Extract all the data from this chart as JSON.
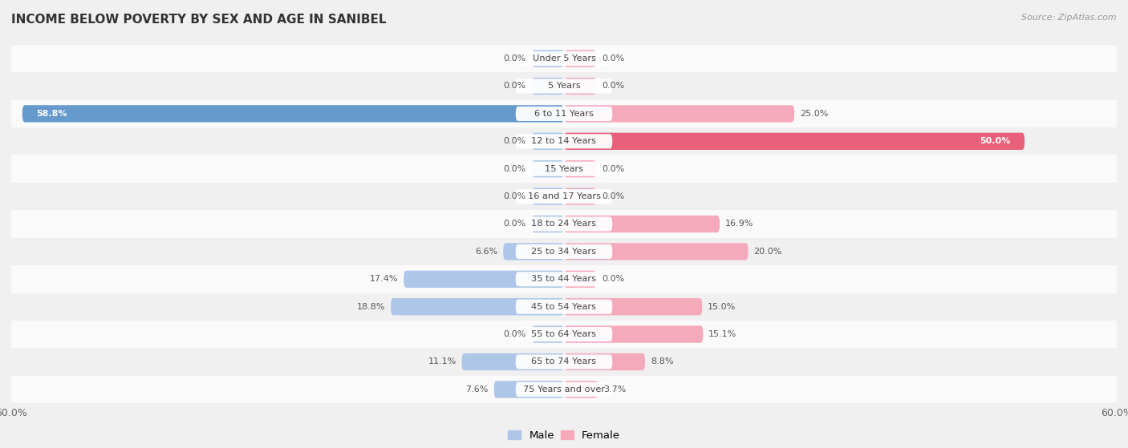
{
  "title": "INCOME BELOW POVERTY BY SEX AND AGE IN SANIBEL",
  "source": "Source: ZipAtlas.com",
  "categories": [
    "Under 5 Years",
    "5 Years",
    "6 to 11 Years",
    "12 to 14 Years",
    "15 Years",
    "16 and 17 Years",
    "18 to 24 Years",
    "25 to 34 Years",
    "35 to 44 Years",
    "45 to 54 Years",
    "55 to 64 Years",
    "65 to 74 Years",
    "75 Years and over"
  ],
  "male_values": [
    0.0,
    0.0,
    58.8,
    0.0,
    0.0,
    0.0,
    0.0,
    6.6,
    17.4,
    18.8,
    0.0,
    11.1,
    7.6
  ],
  "female_values": [
    0.0,
    0.0,
    25.0,
    50.0,
    0.0,
    0.0,
    16.9,
    20.0,
    0.0,
    15.0,
    15.1,
    8.8,
    3.7
  ],
  "male_color_light": "#aec6e8",
  "male_color_strong": "#6699cc",
  "female_color_light": "#f5aabb",
  "female_color_strong": "#e8607a",
  "axis_limit": 60.0,
  "bg_color": "#f0f0f0",
  "row_odd": "#f0f0f0",
  "row_even": "#fafafa",
  "label_bg": "#ffffff",
  "text_dark": "#555555",
  "text_white": "#ffffff",
  "min_stub": 3.5,
  "legend_male": "#aec6e8",
  "legend_female": "#f5aabb"
}
